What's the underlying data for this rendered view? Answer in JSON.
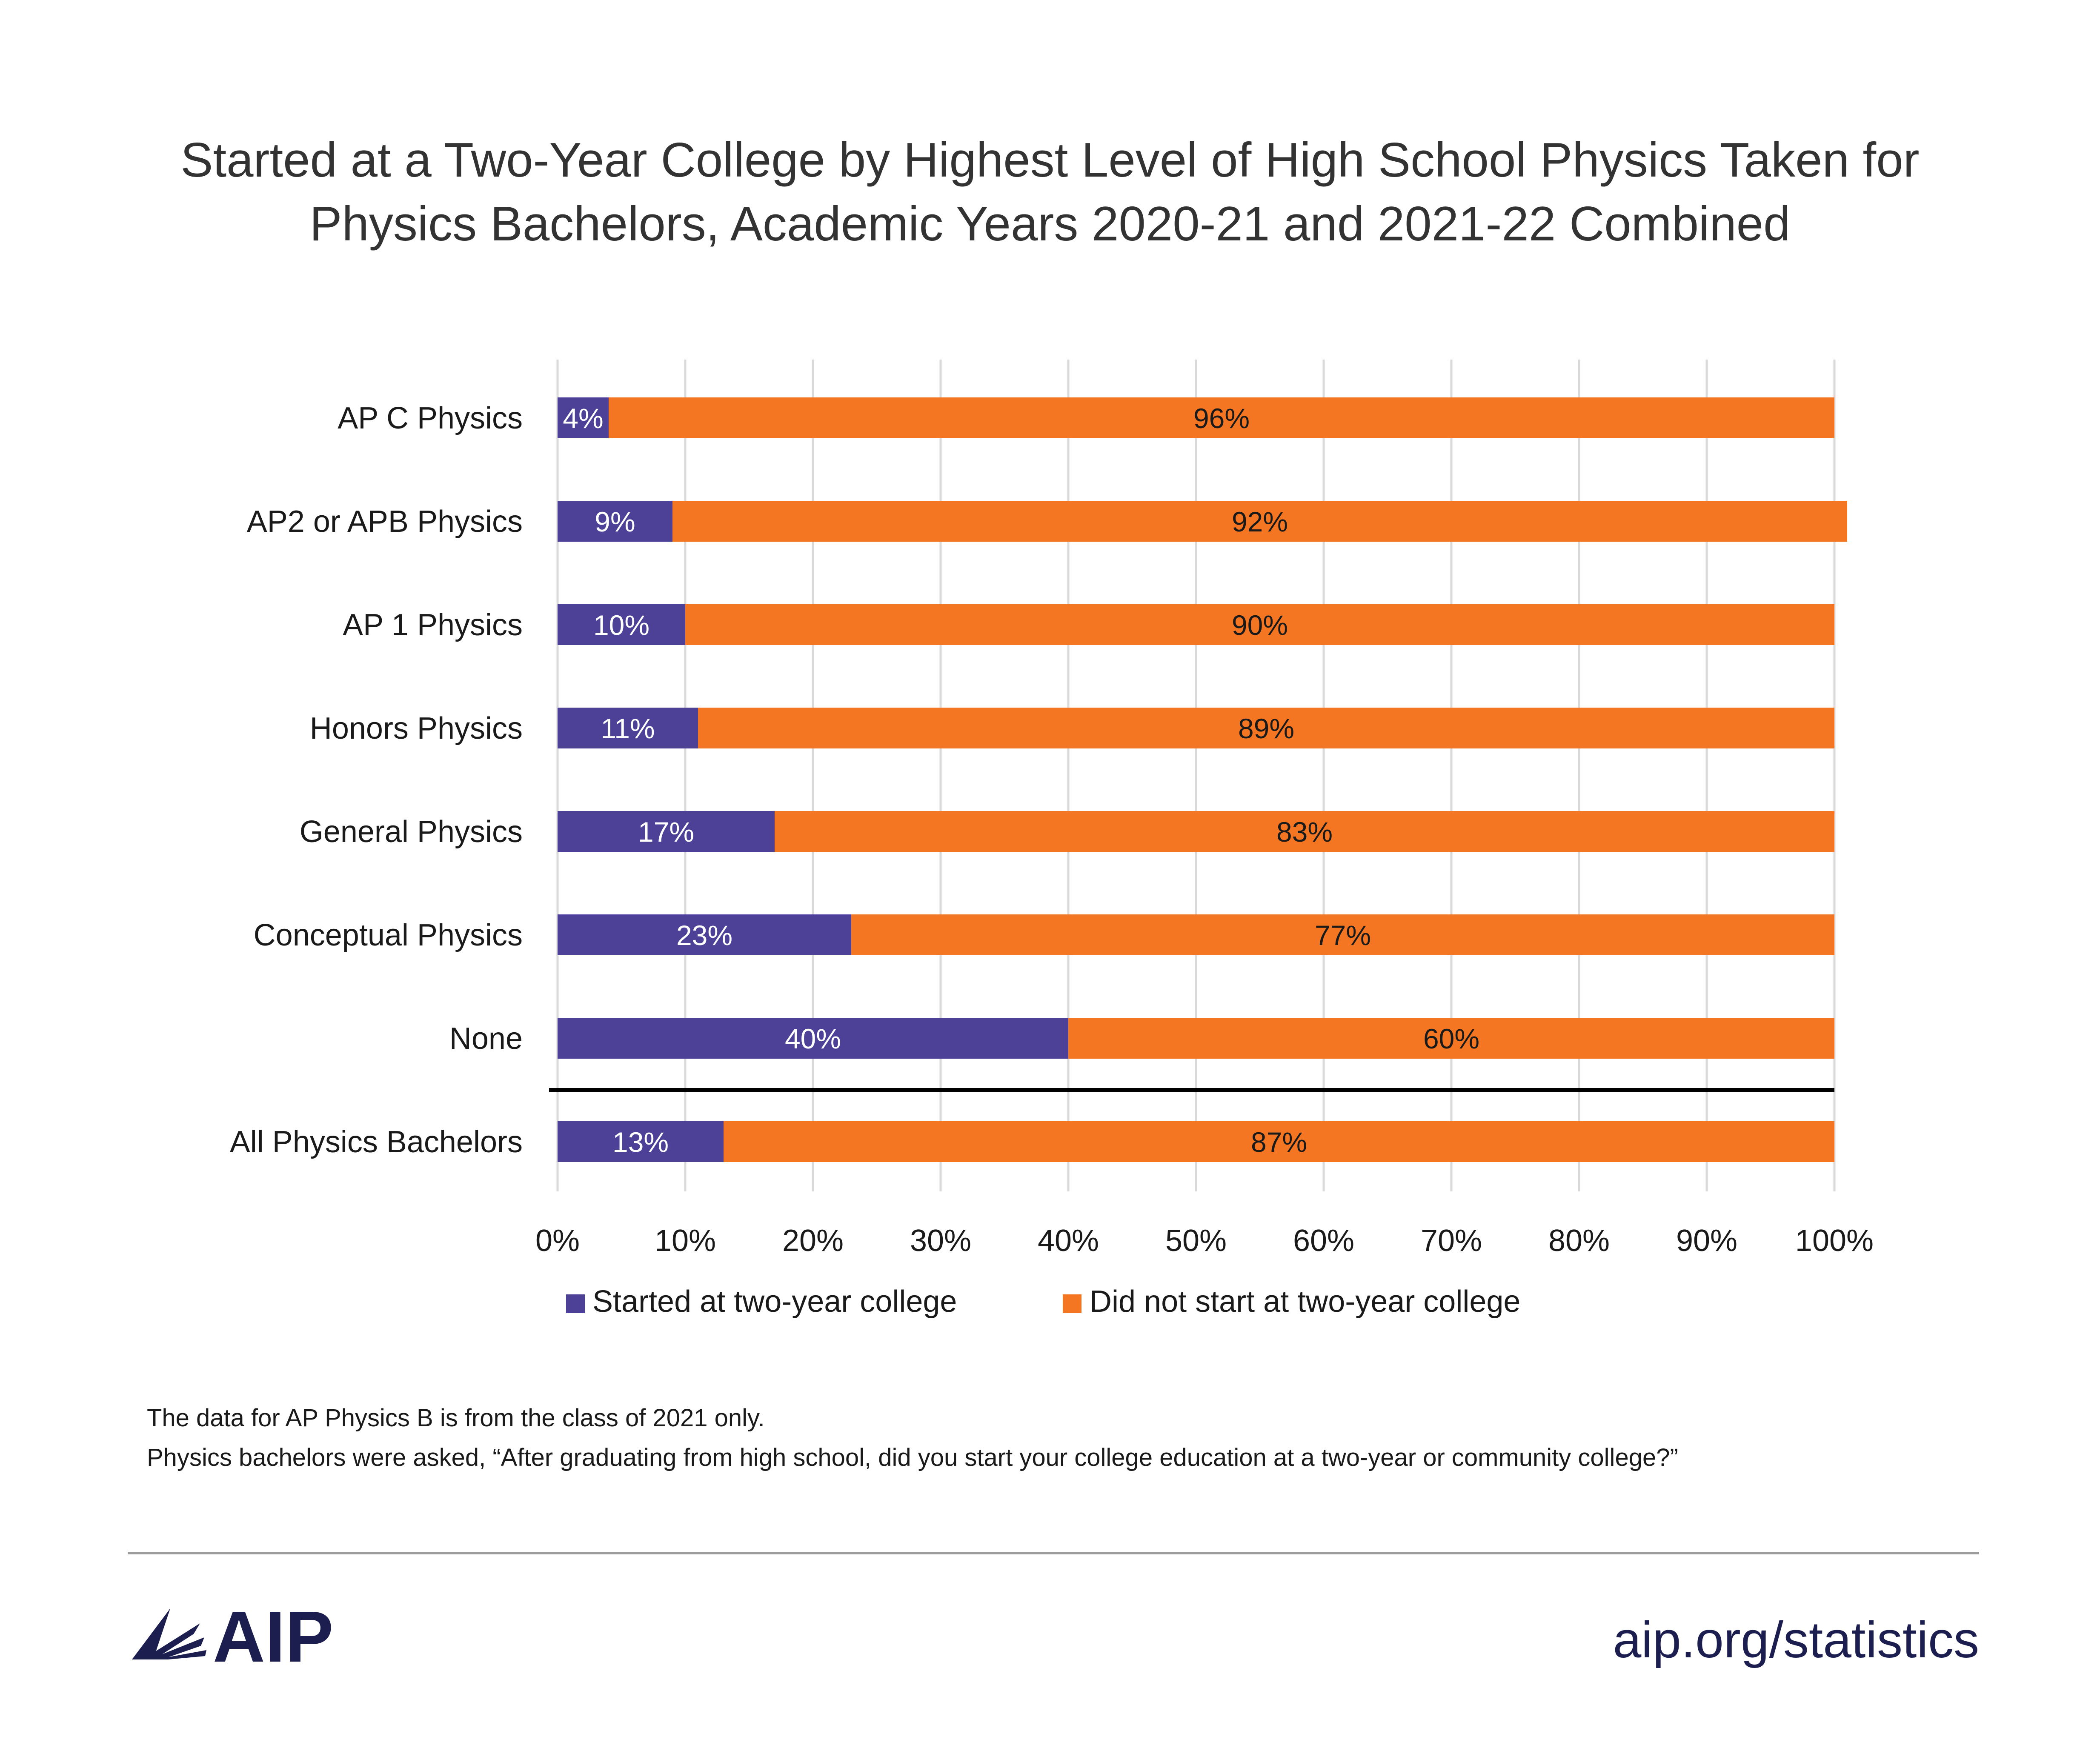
{
  "chart_data": {
    "type": "bar",
    "orientation": "horizontal",
    "stacked": true,
    "title": [
      "Started at a Two-Year College by Highest Level of High School Physics Taken for",
      "Physics Bachelors, Academic Years 2020-21 and 2021-22 Combined"
    ],
    "categories": [
      "AP C Physics",
      "AP2 or APB Physics",
      "AP 1 Physics",
      "Honors Physics",
      "General Physics",
      "Conceptual Physics",
      "None",
      "All Physics Bachelors"
    ],
    "series": [
      {
        "name": "Started at two-year college",
        "color": "#4c4196",
        "values": [
          4,
          9,
          10,
          11,
          17,
          23,
          40,
          13
        ],
        "labels": [
          "4%",
          "9%",
          "10%",
          "11%",
          "17%",
          "23%",
          "40%",
          "13%"
        ]
      },
      {
        "name": "Did not start at two-year college",
        "color": "#f47622",
        "values": [
          96,
          92,
          90,
          89,
          83,
          77,
          60,
          87
        ],
        "labels": [
          "96%",
          "92%",
          "90%",
          "89%",
          "83%",
          "77%",
          "60%",
          "87%"
        ]
      }
    ],
    "xlim": [
      0,
      100
    ],
    "x_ticks": [
      "0%",
      "10%",
      "20%",
      "30%",
      "40%",
      "50%",
      "60%",
      "70%",
      "80%",
      "90%",
      "100%"
    ],
    "grid": "vertical",
    "legend_position": "bottom",
    "separator_before": "All Physics Bachelors"
  },
  "notes": [
    "The data for AP Physics B is from the class of 2021 only.",
    "Physics bachelors were asked, “After graduating from high school, did you start your college education at a two-year or community college?”"
  ],
  "footer": {
    "logo_text": "AIP",
    "url": "aip.org/statistics",
    "brand_color": "#1c1e4f"
  }
}
